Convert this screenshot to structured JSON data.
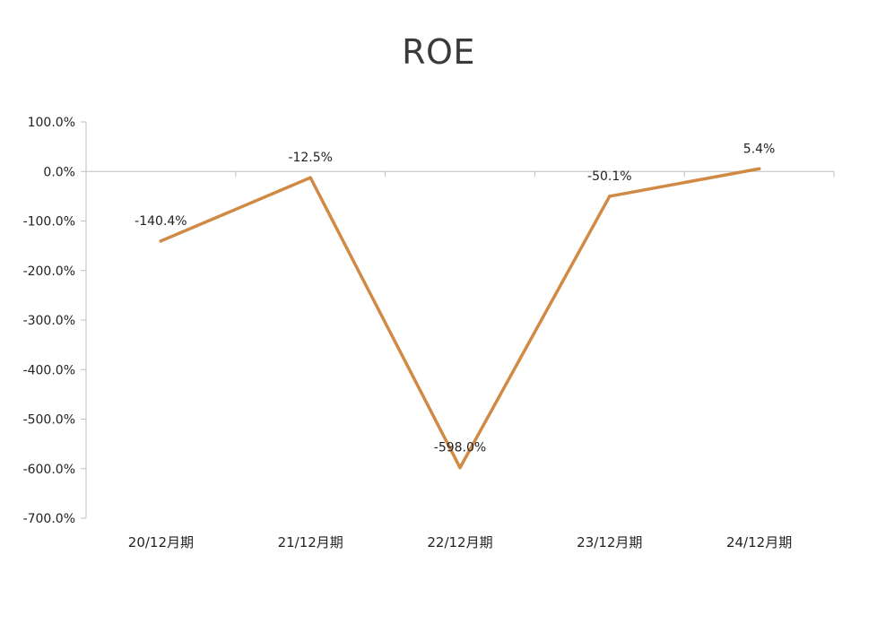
{
  "chart_data": {
    "type": "line",
    "title": "ROE",
    "categories": [
      "20/12月期",
      "21/12月期",
      "22/12月期",
      "23/12月期",
      "24/12月期"
    ],
    "series": [
      {
        "values": [
          -140.4,
          -12.5,
          -598.0,
          -50.1,
          5.4
        ],
        "color": "#D08A45"
      }
    ],
    "data_labels": [
      "-140.4%",
      "-12.5%",
      "-598.0%",
      "-50.1%",
      "5.4%"
    ],
    "yticks": [
      100,
      0,
      -100,
      -200,
      -300,
      -400,
      -500,
      -600,
      -700
    ],
    "ytick_labels": [
      "100.0%",
      "0.0%",
      "-100.0%",
      "-200.0%",
      "-300.0%",
      "-400.0%",
      "-500.0%",
      "-600.0%",
      "-700.0%"
    ],
    "ylim": [
      -700,
      100
    ],
    "grid": false,
    "legend": "none"
  }
}
